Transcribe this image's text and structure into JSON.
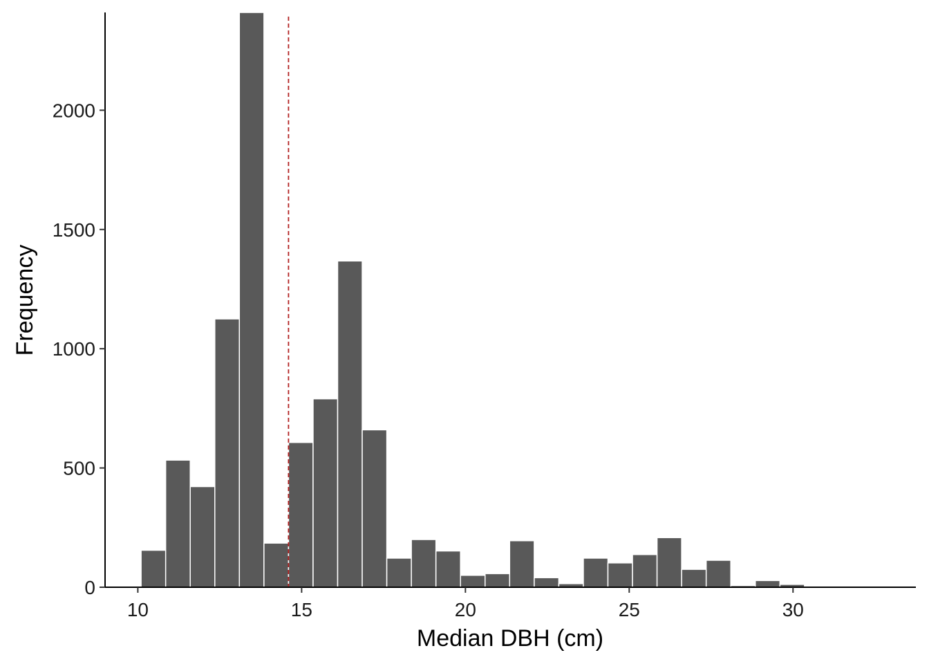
{
  "chart_data": {
    "type": "bar",
    "title": "",
    "xlabel": "Median DBH (cm)",
    "ylabel": "Frequency",
    "xlim": [
      9.0,
      33.75
    ],
    "ylim": [
      0,
      2410
    ],
    "x_ticks": [
      10,
      15,
      20,
      25,
      30
    ],
    "y_ticks": [
      0,
      500,
      1000,
      1500,
      2000
    ],
    "bin_width": 0.75,
    "bins": [
      {
        "start": 10.1,
        "end": 10.85,
        "count": 155
      },
      {
        "start": 10.85,
        "end": 11.6,
        "count": 533
      },
      {
        "start": 11.6,
        "end": 12.35,
        "count": 422
      },
      {
        "start": 12.35,
        "end": 13.1,
        "count": 1125
      },
      {
        "start": 13.1,
        "end": 13.85,
        "count": 2410
      },
      {
        "start": 13.85,
        "end": 14.6,
        "count": 185
      },
      {
        "start": 14.6,
        "end": 15.35,
        "count": 607
      },
      {
        "start": 15.35,
        "end": 16.1,
        "count": 790
      },
      {
        "start": 16.1,
        "end": 16.85,
        "count": 1368
      },
      {
        "start": 16.85,
        "end": 17.6,
        "count": 660
      },
      {
        "start": 17.6,
        "end": 18.35,
        "count": 122
      },
      {
        "start": 18.35,
        "end": 19.1,
        "count": 200
      },
      {
        "start": 19.1,
        "end": 19.85,
        "count": 152
      },
      {
        "start": 19.85,
        "end": 20.6,
        "count": 50
      },
      {
        "start": 20.6,
        "end": 21.35,
        "count": 57
      },
      {
        "start": 21.35,
        "end": 22.1,
        "count": 195
      },
      {
        "start": 22.1,
        "end": 22.85,
        "count": 40
      },
      {
        "start": 22.85,
        "end": 23.6,
        "count": 15
      },
      {
        "start": 23.6,
        "end": 24.35,
        "count": 122
      },
      {
        "start": 24.35,
        "end": 25.1,
        "count": 102
      },
      {
        "start": 25.1,
        "end": 25.85,
        "count": 137
      },
      {
        "start": 25.85,
        "end": 26.6,
        "count": 208
      },
      {
        "start": 26.6,
        "end": 27.35,
        "count": 75
      },
      {
        "start": 27.35,
        "end": 28.1,
        "count": 113
      },
      {
        "start": 28.1,
        "end": 28.85,
        "count": 7
      },
      {
        "start": 28.85,
        "end": 29.6,
        "count": 28
      },
      {
        "start": 29.6,
        "end": 30.35,
        "count": 12
      },
      {
        "start": 30.35,
        "end": 31.1,
        "count": 2
      },
      {
        "start": 31.1,
        "end": 31.85,
        "count": 5
      },
      {
        "start": 31.85,
        "end": 32.6,
        "count": 0
      }
    ],
    "reference_line": {
      "x": 14.6,
      "style": "dashed",
      "color": "#b22222"
    },
    "bar_color": "#595959",
    "bar_edge_color": "#ffffff",
    "grid": false,
    "legend": "none"
  }
}
